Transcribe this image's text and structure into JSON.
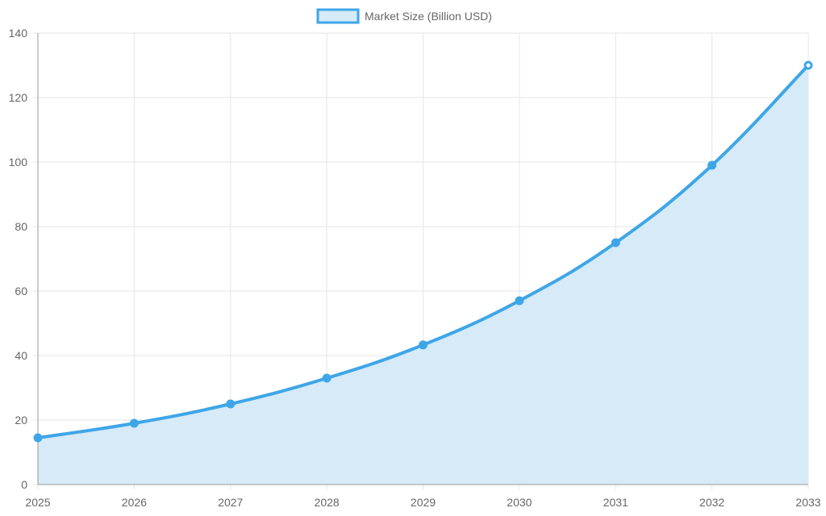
{
  "chart_data": {
    "type": "area",
    "categories": [
      "2025",
      "2026",
      "2027",
      "2028",
      "2029",
      "2030",
      "2031",
      "2032",
      "2033"
    ],
    "series": [
      {
        "name": "Market Size (Billion USD)",
        "values": [
          14.5,
          19,
          25,
          33,
          43.3,
          57,
          75,
          99,
          130
        ]
      }
    ],
    "title": "",
    "xlabel": "",
    "ylabel": "",
    "ylim": [
      0,
      140
    ],
    "yticks": [
      "0",
      "20",
      "40",
      "60",
      "80",
      "100",
      "120",
      "140"
    ],
    "grid": true,
    "legend_position": "top-center",
    "colors": {
      "line": "#3ea6e8",
      "fill": "#d6eaf8",
      "grid": "#e6e6e6",
      "axis": "#999999",
      "text": "#666666"
    }
  }
}
